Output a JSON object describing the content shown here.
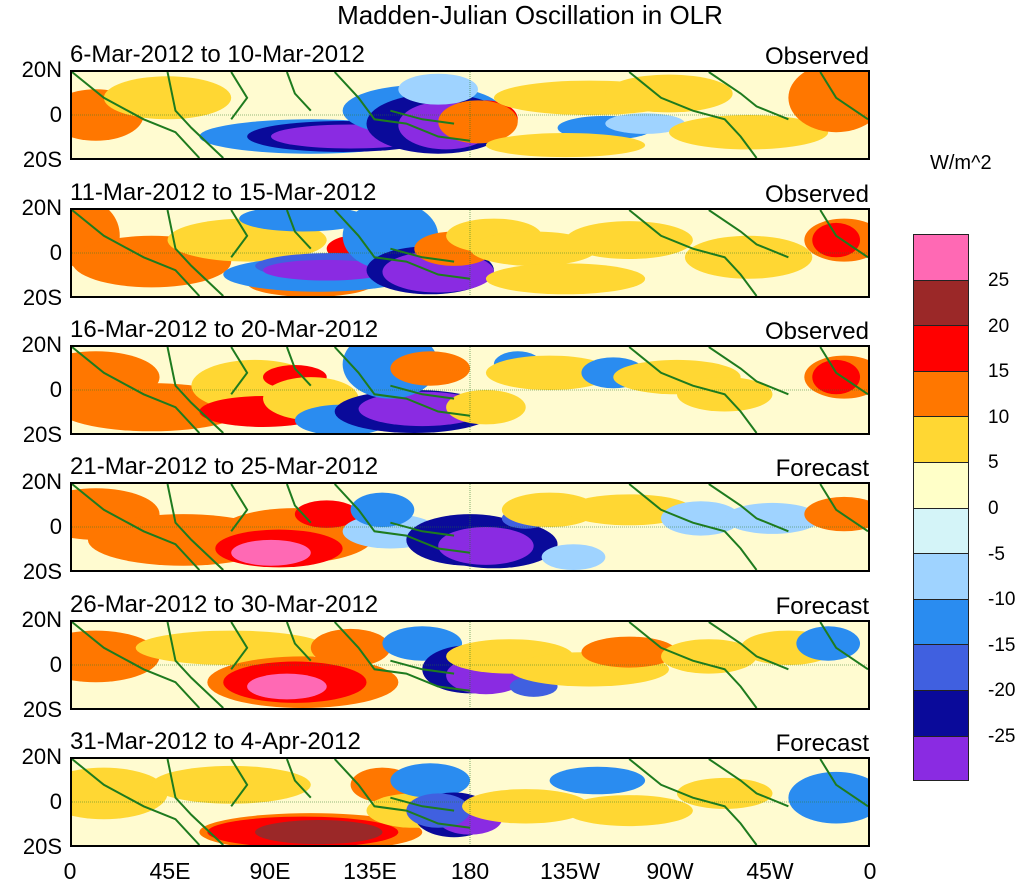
{
  "title": "Madden-Julian Oscillation in OLR",
  "units": "W/m^2",
  "lat_labels": [
    "20N",
    "0",
    "20S"
  ],
  "x_labels": [
    "0",
    "45E",
    "90E",
    "135E",
    "180",
    "135W",
    "90W",
    "45W",
    "0"
  ],
  "colorbar": {
    "labels": [
      "25",
      "20",
      "15",
      "10",
      "5",
      "0",
      "-5",
      "-10",
      "-15",
      "-20",
      "-25"
    ],
    "colors": [
      "#ff69b4",
      "#9b2828",
      "#ff0000",
      "#ff7700",
      "#ffd733",
      "#ffffc8",
      "#d4f4f8",
      "#9fd3ff",
      "#2a8cf0",
      "#4060e0",
      "#0a0a9a",
      "#8a2be2"
    ]
  },
  "panels": [
    {
      "date": "6-Mar-2012 to 10-Mar-2012",
      "kind": "Observed"
    },
    {
      "date": "11-Mar-2012 to 15-Mar-2012",
      "kind": "Observed"
    },
    {
      "date": "16-Mar-2012 to 20-Mar-2012",
      "kind": "Observed"
    },
    {
      "date": "21-Mar-2012 to 25-Mar-2012",
      "kind": "Forecast"
    },
    {
      "date": "26-Mar-2012 to 30-Mar-2012",
      "kind": "Forecast"
    },
    {
      "date": "31-Mar-2012 to 4-Apr-2012",
      "kind": "Forecast"
    }
  ]
}
